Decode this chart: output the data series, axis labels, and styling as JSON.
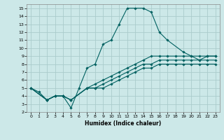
{
  "xlabel": "Humidex (Indice chaleur)",
  "xlim": [
    -0.5,
    23.5
  ],
  "ylim": [
    2,
    15.5
  ],
  "xticks": [
    0,
    1,
    2,
    3,
    4,
    5,
    6,
    7,
    8,
    9,
    10,
    11,
    12,
    13,
    14,
    15,
    16,
    17,
    18,
    19,
    20,
    21,
    22,
    23
  ],
  "yticks": [
    2,
    3,
    4,
    5,
    6,
    7,
    8,
    9,
    10,
    11,
    12,
    13,
    14,
    15
  ],
  "bg_color": "#cce8e8",
  "grid_color": "#aacccc",
  "line_color": "#006060",
  "series": [
    {
      "x": [
        0,
        1,
        2,
        3,
        4,
        5,
        6,
        7,
        8,
        9,
        10,
        11,
        12,
        13,
        14,
        15,
        16,
        17,
        19,
        20,
        21,
        22,
        23
      ],
      "y": [
        5,
        4.5,
        3.5,
        4,
        4,
        2.5,
        5,
        7.5,
        8,
        10.5,
        11,
        13,
        15,
        15,
        15,
        14.5,
        12,
        11,
        9.5,
        9,
        8.5,
        9,
        9
      ]
    },
    {
      "x": [
        0,
        2,
        3,
        4,
        5,
        7,
        8,
        9,
        10,
        11,
        12,
        13,
        14,
        15,
        16,
        17,
        18,
        19,
        20,
        21,
        22,
        23
      ],
      "y": [
        5,
        3.5,
        4,
        4,
        3.5,
        5,
        5.5,
        6,
        6.5,
        7,
        7.5,
        8,
        8.5,
        9,
        9,
        9,
        9,
        9,
        9,
        9,
        9,
        9
      ]
    },
    {
      "x": [
        0,
        2,
        3,
        4,
        5,
        7,
        8,
        9,
        10,
        11,
        12,
        13,
        14,
        15,
        16,
        17,
        18,
        19,
        20,
        21,
        22,
        23
      ],
      "y": [
        5,
        3.5,
        4,
        4,
        3.5,
        5,
        5,
        5.5,
        6,
        6.5,
        7,
        7.5,
        8,
        8,
        8.5,
        8.5,
        8.5,
        8.5,
        8.5,
        8.5,
        8.5,
        8.5
      ]
    },
    {
      "x": [
        0,
        2,
        3,
        4,
        5,
        7,
        8,
        9,
        10,
        11,
        12,
        13,
        14,
        15,
        16,
        17,
        18,
        19,
        20,
        21,
        22,
        23
      ],
      "y": [
        5,
        3.5,
        4,
        4,
        3.5,
        5,
        5,
        5,
        5.5,
        6,
        6.5,
        7,
        7.5,
        7.5,
        8,
        8,
        8,
        8,
        8,
        8,
        8,
        8
      ]
    }
  ]
}
